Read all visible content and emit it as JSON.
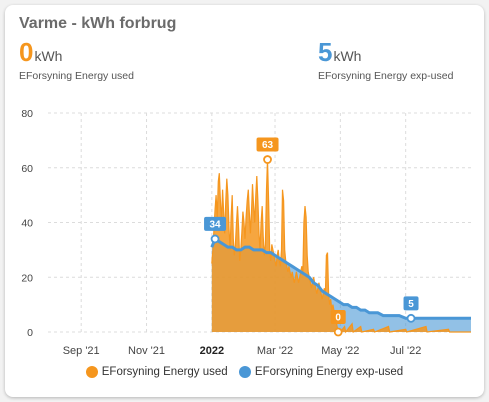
{
  "card": {
    "title": "Varme - kWh forbrug"
  },
  "stats": {
    "used": {
      "value": "0",
      "unit": "kWh",
      "label": "EForsyning Energy used",
      "color": "#f5961e"
    },
    "exp": {
      "value": "5",
      "unit": "kWh",
      "label": "EForsyning Energy exp-used",
      "color": "#4a97d6"
    }
  },
  "colors": {
    "used": "#f5961e",
    "exp": "#4a97d6",
    "grid": "#dcdcdc"
  },
  "chart_data": {
    "type": "area",
    "ylim": [
      0,
      80
    ],
    "yticks": [
      "0",
      "20",
      "40",
      "60",
      "80"
    ],
    "xticks": [
      {
        "label": "Sep '21",
        "date": "2021-09-01",
        "bold": false
      },
      {
        "label": "Nov '21",
        "date": "2021-11-01",
        "bold": false
      },
      {
        "label": "2022",
        "date": "2022-01-01",
        "bold": true
      },
      {
        "label": "Mar '22",
        "date": "2022-03-01",
        "bold": false
      },
      {
        "label": "May '22",
        "date": "2022-05-01",
        "bold": false
      },
      {
        "label": "Jul '22",
        "date": "2022-07-01",
        "bold": false
      }
    ],
    "xrange": [
      "2021-08-01",
      "2022-08-31"
    ],
    "series": [
      {
        "name": "EForsyning Energy used",
        "color": "#f5961e",
        "points": [
          [
            "2022-01-01",
            25
          ],
          [
            "2022-01-02",
            30
          ],
          [
            "2022-01-03",
            38
          ],
          [
            "2022-01-04",
            45
          ],
          [
            "2022-01-05",
            50
          ],
          [
            "2022-01-06",
            42
          ],
          [
            "2022-01-07",
            55
          ],
          [
            "2022-01-08",
            58
          ],
          [
            "2022-01-09",
            48
          ],
          [
            "2022-01-10",
            40
          ],
          [
            "2022-01-11",
            52
          ],
          [
            "2022-01-12",
            44
          ],
          [
            "2022-01-13",
            36
          ],
          [
            "2022-01-14",
            48
          ],
          [
            "2022-01-15",
            56
          ],
          [
            "2022-01-16",
            50
          ],
          [
            "2022-01-17",
            38
          ],
          [
            "2022-01-18",
            30
          ],
          [
            "2022-01-19",
            42
          ],
          [
            "2022-01-20",
            50
          ],
          [
            "2022-01-21",
            34
          ],
          [
            "2022-01-22",
            28
          ],
          [
            "2022-01-23",
            32
          ],
          [
            "2022-01-24",
            40
          ],
          [
            "2022-01-25",
            46
          ],
          [
            "2022-01-26",
            38
          ],
          [
            "2022-01-27",
            26
          ],
          [
            "2022-01-28",
            30
          ],
          [
            "2022-01-29",
            36
          ],
          [
            "2022-01-30",
            44
          ],
          [
            "2022-01-31",
            40
          ],
          [
            "2022-02-01",
            34
          ],
          [
            "2022-02-02",
            42
          ],
          [
            "2022-02-03",
            48
          ],
          [
            "2022-02-04",
            52
          ],
          [
            "2022-02-05",
            44
          ],
          [
            "2022-02-06",
            36
          ],
          [
            "2022-02-07",
            44
          ],
          [
            "2022-02-08",
            54
          ],
          [
            "2022-02-09",
            46
          ],
          [
            "2022-02-10",
            40
          ],
          [
            "2022-02-11",
            50
          ],
          [
            "2022-02-12",
            57
          ],
          [
            "2022-02-13",
            48
          ],
          [
            "2022-02-14",
            36
          ],
          [
            "2022-02-15",
            30
          ],
          [
            "2022-02-16",
            40
          ],
          [
            "2022-02-17",
            46
          ],
          [
            "2022-02-18",
            35
          ],
          [
            "2022-02-19",
            28
          ],
          [
            "2022-02-20",
            32
          ],
          [
            "2022-02-21",
            52
          ],
          [
            "2022-02-22",
            63
          ],
          [
            "2022-02-23",
            48
          ],
          [
            "2022-02-24",
            30
          ],
          [
            "2022-02-25",
            26
          ],
          [
            "2022-02-26",
            32
          ],
          [
            "2022-02-27",
            30
          ],
          [
            "2022-02-28",
            28
          ],
          [
            "2022-03-01",
            26
          ],
          [
            "2022-03-02",
            24
          ],
          [
            "2022-03-03",
            28
          ],
          [
            "2022-03-04",
            30
          ],
          [
            "2022-03-05",
            26
          ],
          [
            "2022-03-06",
            24
          ],
          [
            "2022-03-07",
            30
          ],
          [
            "2022-03-08",
            52
          ],
          [
            "2022-03-09",
            48
          ],
          [
            "2022-03-10",
            30
          ],
          [
            "2022-03-11",
            26
          ],
          [
            "2022-03-12",
            24
          ],
          [
            "2022-03-13",
            22
          ],
          [
            "2022-03-14",
            24
          ],
          [
            "2022-03-15",
            22
          ],
          [
            "2022-03-16",
            20
          ],
          [
            "2022-03-17",
            22
          ],
          [
            "2022-03-18",
            20
          ],
          [
            "2022-03-19",
            18
          ],
          [
            "2022-03-20",
            20
          ],
          [
            "2022-03-21",
            22
          ],
          [
            "2022-03-22",
            20
          ],
          [
            "2022-03-23",
            18
          ],
          [
            "2022-03-24",
            20
          ],
          [
            "2022-03-25",
            22
          ],
          [
            "2022-03-26",
            24
          ],
          [
            "2022-03-27",
            22
          ],
          [
            "2022-03-28",
            40
          ],
          [
            "2022-03-29",
            46
          ],
          [
            "2022-03-30",
            42
          ],
          [
            "2022-03-31",
            28
          ],
          [
            "2022-04-01",
            22
          ],
          [
            "2022-04-02",
            20
          ],
          [
            "2022-04-03",
            18
          ],
          [
            "2022-04-04",
            16
          ],
          [
            "2022-04-05",
            18
          ],
          [
            "2022-04-06",
            20
          ],
          [
            "2022-04-07",
            18
          ],
          [
            "2022-04-08",
            16
          ],
          [
            "2022-04-09",
            14
          ],
          [
            "2022-04-10",
            16
          ],
          [
            "2022-04-11",
            18
          ],
          [
            "2022-04-12",
            16
          ],
          [
            "2022-04-13",
            14
          ],
          [
            "2022-04-14",
            12
          ],
          [
            "2022-04-15",
            14
          ],
          [
            "2022-04-16",
            16
          ],
          [
            "2022-04-17",
            14
          ],
          [
            "2022-04-18",
            28
          ],
          [
            "2022-04-19",
            29
          ],
          [
            "2022-04-20",
            14
          ],
          [
            "2022-04-21",
            10
          ],
          [
            "2022-04-22",
            12
          ],
          [
            "2022-04-23",
            8
          ],
          [
            "2022-04-24",
            10
          ],
          [
            "2022-04-25",
            8
          ],
          [
            "2022-04-26",
            6
          ],
          [
            "2022-04-27",
            4
          ],
          [
            "2022-04-28",
            2
          ],
          [
            "2022-04-29",
            0
          ],
          [
            "2022-04-30",
            0
          ],
          [
            "2022-05-01",
            0
          ],
          [
            "2022-05-05",
            2
          ],
          [
            "2022-05-06",
            0
          ],
          [
            "2022-05-12",
            3
          ],
          [
            "2022-05-13",
            0
          ],
          [
            "2022-05-20",
            2
          ],
          [
            "2022-05-21",
            0
          ],
          [
            "2022-06-01",
            1
          ],
          [
            "2022-06-02",
            0
          ],
          [
            "2022-06-15",
            2
          ],
          [
            "2022-06-16",
            0
          ],
          [
            "2022-07-01",
            1
          ],
          [
            "2022-07-02",
            0
          ],
          [
            "2022-07-20",
            2
          ],
          [
            "2022-07-21",
            0
          ],
          [
            "2022-08-10",
            1
          ],
          [
            "2022-08-11",
            0
          ],
          [
            "2022-08-31",
            0
          ]
        ]
      },
      {
        "name": "EForsyning Energy exp-used",
        "color": "#4a97d6",
        "points": [
          [
            "2022-01-01",
            31
          ],
          [
            "2022-01-04",
            34
          ],
          [
            "2022-01-08",
            33
          ],
          [
            "2022-01-12",
            32
          ],
          [
            "2022-01-16",
            31
          ],
          [
            "2022-01-20",
            31
          ],
          [
            "2022-01-24",
            30
          ],
          [
            "2022-01-28",
            30
          ],
          [
            "2022-02-01",
            31
          ],
          [
            "2022-02-05",
            31
          ],
          [
            "2022-02-09",
            30
          ],
          [
            "2022-02-13",
            30
          ],
          [
            "2022-02-17",
            30
          ],
          [
            "2022-02-21",
            29
          ],
          [
            "2022-02-25",
            29
          ],
          [
            "2022-03-01",
            28
          ],
          [
            "2022-03-05",
            27
          ],
          [
            "2022-03-09",
            26
          ],
          [
            "2022-03-13",
            25
          ],
          [
            "2022-03-17",
            24
          ],
          [
            "2022-03-21",
            23
          ],
          [
            "2022-03-25",
            22
          ],
          [
            "2022-03-29",
            21
          ],
          [
            "2022-04-02",
            20
          ],
          [
            "2022-04-06",
            18
          ],
          [
            "2022-04-10",
            17
          ],
          [
            "2022-04-14",
            15
          ],
          [
            "2022-04-18",
            14
          ],
          [
            "2022-04-22",
            13
          ],
          [
            "2022-04-26",
            12
          ],
          [
            "2022-04-30",
            11
          ],
          [
            "2022-05-04",
            10
          ],
          [
            "2022-05-08",
            10
          ],
          [
            "2022-05-12",
            9
          ],
          [
            "2022-05-16",
            9
          ],
          [
            "2022-05-20",
            8
          ],
          [
            "2022-05-24",
            8
          ],
          [
            "2022-05-28",
            7
          ],
          [
            "2022-06-01",
            7
          ],
          [
            "2022-06-05",
            7
          ],
          [
            "2022-06-10",
            6
          ],
          [
            "2022-06-15",
            6
          ],
          [
            "2022-06-20",
            6
          ],
          [
            "2022-06-25",
            6
          ],
          [
            "2022-07-01",
            5
          ],
          [
            "2022-07-06",
            5
          ],
          [
            "2022-07-10",
            5
          ],
          [
            "2022-07-15",
            5
          ],
          [
            "2022-07-20",
            5
          ],
          [
            "2022-07-25",
            5
          ],
          [
            "2022-08-01",
            5
          ],
          [
            "2022-08-08",
            5
          ],
          [
            "2022-08-15",
            5
          ],
          [
            "2022-08-22",
            5
          ],
          [
            "2022-08-31",
            5
          ]
        ]
      }
    ],
    "annotations": [
      {
        "series": "EForsyning Energy exp-used",
        "date": "2022-01-04",
        "value": 34,
        "label": "34",
        "color": "#4a97d6"
      },
      {
        "series": "EForsyning Energy used",
        "date": "2022-02-22",
        "value": 63,
        "label": "63",
        "color": "#f5961e"
      },
      {
        "series": "EForsyning Energy used",
        "date": "2022-04-29",
        "value": 0,
        "label": "0",
        "color": "#f5961e"
      },
      {
        "series": "EForsyning Energy exp-used",
        "date": "2022-07-06",
        "value": 5,
        "label": "5",
        "color": "#4a97d6"
      }
    ],
    "legend": [
      {
        "label": "EForsyning Energy used",
        "color": "#f5961e"
      },
      {
        "label": "EForsyning Energy exp-used",
        "color": "#4a97d6"
      }
    ]
  }
}
